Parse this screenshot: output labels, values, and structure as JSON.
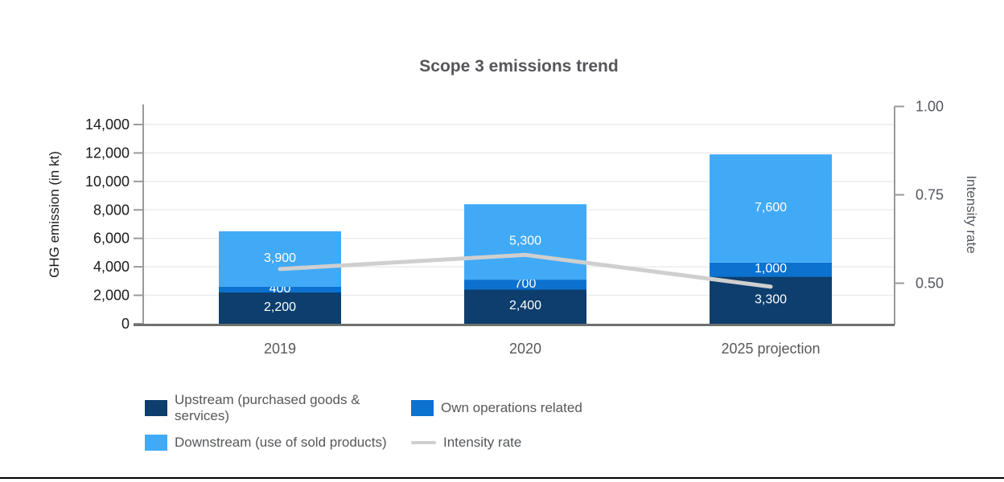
{
  "chart_data": {
    "type": "bar",
    "subtype": "stacked-column-with-line-overlay",
    "title": "Scope 3 emissions trend",
    "categories": [
      "2019",
      "2020",
      "2025 projection"
    ],
    "series": [
      {
        "name": "Upstream (purchased goods & services)",
        "color": "#0d3e6d",
        "values": [
          2200,
          2400,
          3300
        ],
        "value_labels": [
          "2,200",
          "2,400",
          "3,300"
        ]
      },
      {
        "name": "Own operations related",
        "color": "#0b72d0",
        "values": [
          400,
          700,
          1000
        ],
        "value_labels": [
          "400",
          "700",
          "1,000"
        ]
      },
      {
        "name": "Downstream (use of sold products)",
        "color": "#41aaf7",
        "values": [
          3900,
          5300,
          7600
        ],
        "value_labels": [
          "3,900",
          "5,300",
          "7,600"
        ]
      }
    ],
    "stack_totals": [
      6500,
      8400,
      11900
    ],
    "line_series": {
      "name": "Intensity rate",
      "color": "#cfcfcf",
      "axis": "right",
      "values": [
        0.54,
        0.58,
        0.49
      ]
    },
    "left_axis": {
      "title": "GHG emission (in kt)",
      "range": [
        0,
        14000
      ],
      "ticks": [
        0,
        2000,
        4000,
        6000,
        8000,
        10000,
        12000,
        14000
      ],
      "tick_labels": [
        "0",
        "2,000",
        "4,000",
        "6,000",
        "8,000",
        "10,000",
        "12,000",
        "14,000"
      ]
    },
    "right_axis": {
      "title": "Intensity rate",
      "range_shown": [
        0.5,
        1.0
      ],
      "ticks": [
        0.5,
        0.75,
        1.0
      ],
      "tick_labels": [
        "0.50",
        "0.75",
        "1.00"
      ]
    },
    "legend": [
      {
        "label": "Upstream (purchased goods & services)",
        "marker": "square",
        "color": "#0d3e6d"
      },
      {
        "label": "Own operations related",
        "marker": "square",
        "color": "#0b72d0"
      },
      {
        "label": "Downstream (use of sold products)",
        "marker": "square",
        "color": "#41aaf7"
      },
      {
        "label": "Intensity rate",
        "marker": "line",
        "color": "#cfcfcf"
      }
    ],
    "legend_position": "bottom",
    "grid": true,
    "style": {
      "bar_label_color": "#ffffff",
      "axis_line_color": "#9a9a9a",
      "baseline_color": "#6f6f6f",
      "gridline_color": "#ececec",
      "left_tick_label_color": "#1b1b1b",
      "right_tick_label_color": "#55575f",
      "x_label_color": "#57585b"
    }
  }
}
